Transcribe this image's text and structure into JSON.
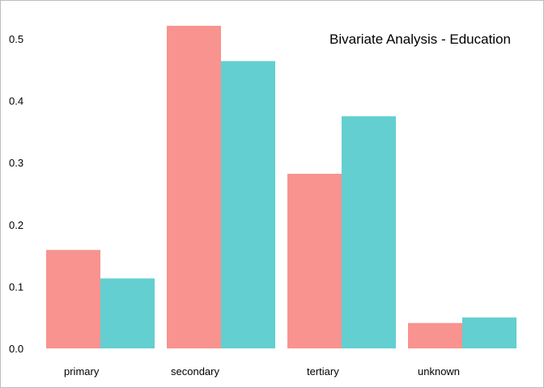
{
  "chart_data": {
    "type": "bar",
    "title": "Bivariate Analysis - Education",
    "xlabel": "",
    "ylabel": "",
    "categories": [
      "primary",
      "secondary",
      "tertiary",
      "unknown"
    ],
    "series": [
      {
        "color": "#F8938F",
        "values": [
          0.159,
          0.521,
          0.282,
          0.041
        ]
      },
      {
        "color": "#63CFD0",
        "values": [
          0.113,
          0.464,
          0.375,
          0.05
        ]
      }
    ],
    "yticks": [
      "0.0",
      "0.1",
      "0.2",
      "0.3",
      "0.4",
      "0.5"
    ],
    "ylim": [
      0,
      0.5
    ],
    "grid": false,
    "legend": "none"
  }
}
